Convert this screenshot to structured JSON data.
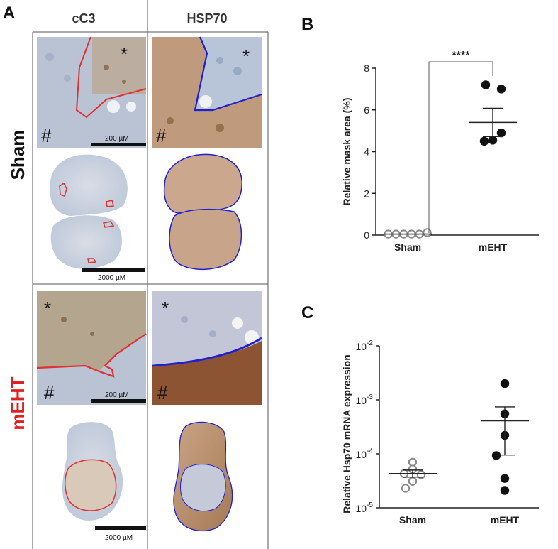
{
  "panelA": {
    "letter": "A",
    "col_headers": [
      "cC3",
      "HSP70"
    ],
    "row_labels": [
      "Sham",
      "mEHT"
    ],
    "star_mark": "*",
    "hash_mark": "#",
    "scale_micro": "200 µM",
    "scale_macro": "2000 µM",
    "colors": {
      "cC3_outline": "#e03030",
      "hsp70_outline": "#2020d0",
      "meht_label": "#e02020"
    }
  },
  "chart_data": [
    {
      "panel": "B",
      "type": "scatter",
      "ylabel": "Relative mask area (%)",
      "categories": [
        "Sham",
        "mEHT"
      ],
      "ylim": [
        0,
        8
      ],
      "yticks": [
        0,
        2,
        4,
        6,
        8
      ],
      "series": [
        {
          "category": "Sham",
          "marker": "open",
          "points": [
            0.05,
            0.05,
            0.05,
            0.05,
            0.05,
            0.12
          ],
          "mean": 0.05
        },
        {
          "category": "mEHT",
          "marker": "filled",
          "points": [
            7.2,
            7.0,
            4.9,
            4.5,
            4.55
          ],
          "mean": 5.4,
          "sem": [
            4.72,
            6.08
          ]
        }
      ],
      "significance": "****"
    },
    {
      "panel": "C",
      "type": "scatter",
      "ylabel": "Relative Hsp70 mRNA expression",
      "categories": [
        "Sham",
        "mEHT"
      ],
      "yscale": "log",
      "ylim": [
        1e-05,
        0.01
      ],
      "yticks": [
        "10-5",
        "10-4",
        "10-3",
        "10-2"
      ],
      "tick_base": "10",
      "tick_exponents": [
        "-5",
        "-4",
        "-3",
        "-2"
      ],
      "series": [
        {
          "category": "Sham",
          "marker": "open",
          "points": [
            7e-05,
            5.2e-05,
            4.3e-05,
            4.1e-05,
            3.1e-05,
            2.3e-05
          ],
          "mean": 4.3e-05,
          "sem": [
            3.7e-05,
            5e-05
          ]
        },
        {
          "category": "mEHT",
          "marker": "filled",
          "points": [
            0.002,
            0.00055,
            0.00022,
            9.3e-05,
            3.5e-05,
            2.1e-05
          ],
          "mean": 0.00041,
          "sem": [
            9.5e-05,
            0.00074
          ]
        }
      ]
    }
  ]
}
